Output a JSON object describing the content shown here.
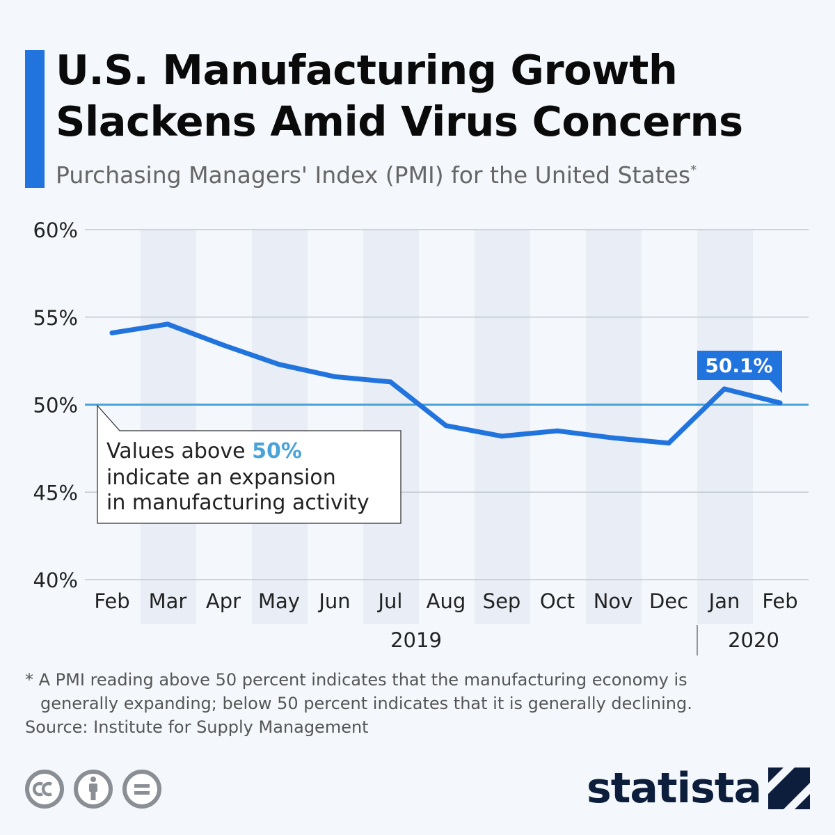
{
  "header": {
    "title_line1": "U.S. Manufacturing Growth",
    "title_line2": "Slackens Amid Virus Concerns",
    "subtitle": "Purchasing Managers' Index (PMI) for the United States",
    "subtitle_mark": "*"
  },
  "annotation": {
    "line1_prefix": "Values above ",
    "line1_highlight": "50%",
    "line2": "indicate an expansion",
    "line3": "in manufacturing activity"
  },
  "chart_data": {
    "type": "line",
    "categories": [
      "Feb",
      "Mar",
      "Apr",
      "May",
      "Jun",
      "Jul",
      "Aug",
      "Sep",
      "Oct",
      "Nov",
      "Dec",
      "Jan",
      "Feb"
    ],
    "series": [
      {
        "values": [
          54.1,
          54.6,
          53.4,
          52.3,
          51.6,
          51.3,
          48.8,
          48.2,
          48.5,
          48.1,
          47.8,
          50.9,
          50.1
        ]
      }
    ],
    "yticks": [
      "60%",
      "55%",
      "50%",
      "45%",
      "40%"
    ],
    "ylim": [
      40,
      60
    ],
    "reference_line": 50,
    "years": [
      "2019",
      "2020"
    ],
    "data_label": "50.1%",
    "grid": true,
    "colors": {
      "line": "#2173dd",
      "reference": "#4aa3d8",
      "band": "#e8edf6",
      "grid": "#b9bec6"
    }
  },
  "footer": {
    "note_line1": "* A PMI reading above 50 percent indicates that the manufacturing economy is",
    "note_line2": "generally expanding; below 50 percent indicates that it is generally declining.",
    "source": "Source: Institute for Supply Management",
    "brand": "statista",
    "license_icons": [
      "cc-icon",
      "attribution-icon",
      "no-derivatives-icon"
    ]
  }
}
